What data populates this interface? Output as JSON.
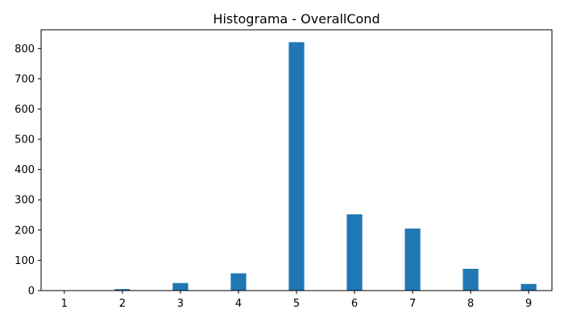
{
  "chart_data": {
    "type": "bar",
    "title": "Histograma - OverallCond",
    "xlabel": "",
    "ylabel": "",
    "x": [
      1,
      2,
      3,
      4,
      5,
      6,
      7,
      8,
      9
    ],
    "values": [
      1,
      5,
      25,
      57,
      821,
      252,
      205,
      72,
      22
    ],
    "bar_width": 0.2667,
    "xlim": [
      0.6,
      9.4
    ],
    "ylim": [
      0,
      862
    ],
    "xticks": [
      1,
      2,
      3,
      4,
      5,
      6,
      7,
      8,
      9
    ],
    "yticks": [
      0,
      100,
      200,
      300,
      400,
      500,
      600,
      700,
      800
    ],
    "bar_color": "#1f77b4",
    "grid": false,
    "legend": "none"
  }
}
